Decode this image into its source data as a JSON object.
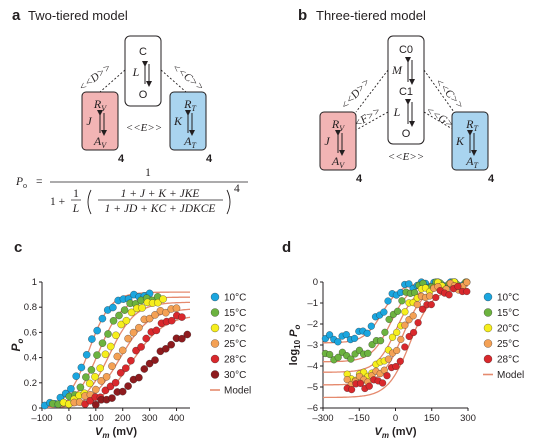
{
  "panel_a": {
    "letter": "a",
    "title": "Two-tiered model",
    "C": "C",
    "L": "L",
    "O": "O",
    "D": "<<D>>",
    "Cc": "<<C>>",
    "E": "<<E>>",
    "RV": "R",
    "RV_sub": "V",
    "J": "J",
    "AV": "A",
    "AV_sub": "V",
    "RT": "R",
    "RT_sub": "T",
    "K": "K",
    "AT": "A",
    "AT_sub": "T",
    "four_left": "4",
    "four_right": "4",
    "eq_lhs": "P",
    "eq_lhs_sub": "o",
    "eq_eq": "=",
    "eq_num": "1",
    "eq_den_prefix": "1 +",
    "eq_one": "1",
    "eq_L": "L",
    "eq_inner_num": "1 + J + K + JKE",
    "eq_inner_den": "1 + JD + KC + JDKCE",
    "eq_pow": "4"
  },
  "panel_b": {
    "letter": "b",
    "title": "Three-tiered model",
    "C0": "C0",
    "M": "M",
    "C1": "C1",
    "L": "L",
    "O": "O",
    "D": "<<D>>",
    "F": "<<F>>",
    "Cc": "<<C>>",
    "G": "<<G>>",
    "E": "<<E>>",
    "RV": "R",
    "RV_sub": "V",
    "J": "J",
    "AV": "A",
    "AV_sub": "V",
    "RT": "R",
    "RT_sub": "T",
    "K": "K",
    "AT": "A",
    "AT_sub": "T",
    "four_left": "4",
    "four_right": "4"
  },
  "colors": {
    "voltage_box": "#f2b4b4",
    "temp_box": "#a9d4ef",
    "10C": "#1ba6df",
    "15C": "#6cb33f",
    "20C": "#f6ee1c",
    "25C": "#f4a155",
    "28C": "#d9282c",
    "30C": "#8e1b1e",
    "model": "#e58a6e",
    "axis": "#231f20"
  },
  "legend_c": [
    "10°C",
    "15°C",
    "20°C",
    "25°C",
    "28°C",
    "30°C",
    "Model"
  ],
  "legend_d": [
    "10°C",
    "15°C",
    "20°C",
    "25°C",
    "28°C",
    "Model"
  ],
  "chart_data": [
    {
      "panel": "c",
      "type": "scatter",
      "xlabel_main": "V",
      "xlabel_sub": "m",
      "xlabel_unit": " (mV)",
      "ylabel_main": "P",
      "ylabel_sub": "o",
      "xlim": [
        -100,
        450
      ],
      "ylim": [
        0,
        1
      ],
      "xticks": [
        -100,
        0,
        100,
        200,
        300,
        400
      ],
      "yticks": [
        0,
        0.2,
        0.4,
        0.6,
        0.8,
        1
      ],
      "xtick_labels": [
        "–100",
        "0",
        "100",
        "200",
        "300",
        "400"
      ],
      "ytick_labels": [
        "0",
        "0.2",
        "0.4",
        "0.6",
        "0.8",
        "1"
      ],
      "legend": "right",
      "series": [
        {
          "name": "10°C",
          "color": "10C",
          "v50": 70,
          "k": 42,
          "max": 0.9,
          "x0": -90,
          "x1": 300,
          "n": 21
        },
        {
          "name": "15°C",
          "color": "15C",
          "v50": 110,
          "k": 46,
          "max": 0.88,
          "x0": -60,
          "x1": 330,
          "n": 20
        },
        {
          "name": "20°C",
          "color": "20C",
          "v50": 140,
          "k": 48,
          "max": 0.86,
          "x0": -20,
          "x1": 350,
          "n": 20
        },
        {
          "name": "25°C",
          "color": "25C",
          "v50": 180,
          "k": 55,
          "max": 0.8,
          "x0": 20,
          "x1": 400,
          "n": 20
        },
        {
          "name": "28°C",
          "color": "28C",
          "v50": 230,
          "k": 60,
          "max": 0.76,
          "x0": 60,
          "x1": 420,
          "n": 20
        },
        {
          "name": "30°C",
          "color": "30C",
          "v50": 290,
          "k": 70,
          "max": 0.65,
          "x0": 100,
          "x1": 440,
          "n": 18
        }
      ],
      "model": [
        {
          "v50": 75,
          "k": 40,
          "max": 0.92
        },
        {
          "v50": 110,
          "k": 44,
          "max": 0.88
        },
        {
          "v50": 150,
          "k": 48,
          "max": 0.84
        },
        {
          "v50": 190,
          "k": 55,
          "max": 0.79
        },
        {
          "v50": 235,
          "k": 60,
          "max": 0.74
        }
      ]
    },
    {
      "panel": "d",
      "type": "scatter",
      "xlabel_main": "V",
      "xlabel_sub": "m",
      "xlabel_unit": " (mV)",
      "ylabel_main": "log",
      "ylabel_sub": "10",
      "ylabel_p": "P",
      "ylabel_p_sub": "o",
      "xlim": [
        -300,
        300
      ],
      "ylim": [
        -6,
        0
      ],
      "xticks": [
        -300,
        -150,
        0,
        150,
        300
      ],
      "yticks": [
        -6,
        -5,
        -4,
        -3,
        -2,
        -1,
        0
      ],
      "xtick_labels": [
        "–300",
        "–150",
        "0",
        "150",
        "300"
      ],
      "ytick_labels": [
        "–6",
        "–5",
        "–4",
        "–3",
        "–2",
        "–1",
        "0"
      ],
      "legend": "right",
      "series": [
        {
          "name": "10°C",
          "color": "10C",
          "mid": -55,
          "k": 38,
          "floor": -2.7,
          "ceil": -0.05,
          "x0": -290,
          "x1": 280,
          "n": 34
        },
        {
          "name": "15°C",
          "color": "15C",
          "mid": -20,
          "k": 40,
          "floor": -3.55,
          "ceil": -0.08,
          "x0": -290,
          "x1": 290,
          "n": 34
        },
        {
          "name": "20°C",
          "color": "20C",
          "mid": 5,
          "k": 42,
          "floor": -4.6,
          "ceil": -0.12,
          "x0": -200,
          "x1": 295,
          "n": 30
        },
        {
          "name": "25°C",
          "color": "25C",
          "mid": 30,
          "k": 44,
          "floor": -4.75,
          "ceil": -0.18,
          "x0": -200,
          "x1": 295,
          "n": 30
        },
        {
          "name": "28°C",
          "color": "28C",
          "mid": 60,
          "k": 46,
          "floor": -5.0,
          "ceil": -0.3,
          "x0": -200,
          "x1": 295,
          "n": 28
        }
      ],
      "model": [
        {
          "mid": -55,
          "k": 38,
          "floor": -2.9,
          "ceil": -0.05
        },
        {
          "mid": -20,
          "k": 40,
          "floor": -3.8,
          "ceil": -0.08
        },
        {
          "mid": 5,
          "k": 42,
          "floor": -4.3,
          "ceil": -0.12
        },
        {
          "mid": 30,
          "k": 44,
          "floor": -4.9,
          "ceil": -0.18
        },
        {
          "mid": 60,
          "k": 46,
          "floor": -5.5,
          "ceil": -0.3
        }
      ]
    }
  ]
}
